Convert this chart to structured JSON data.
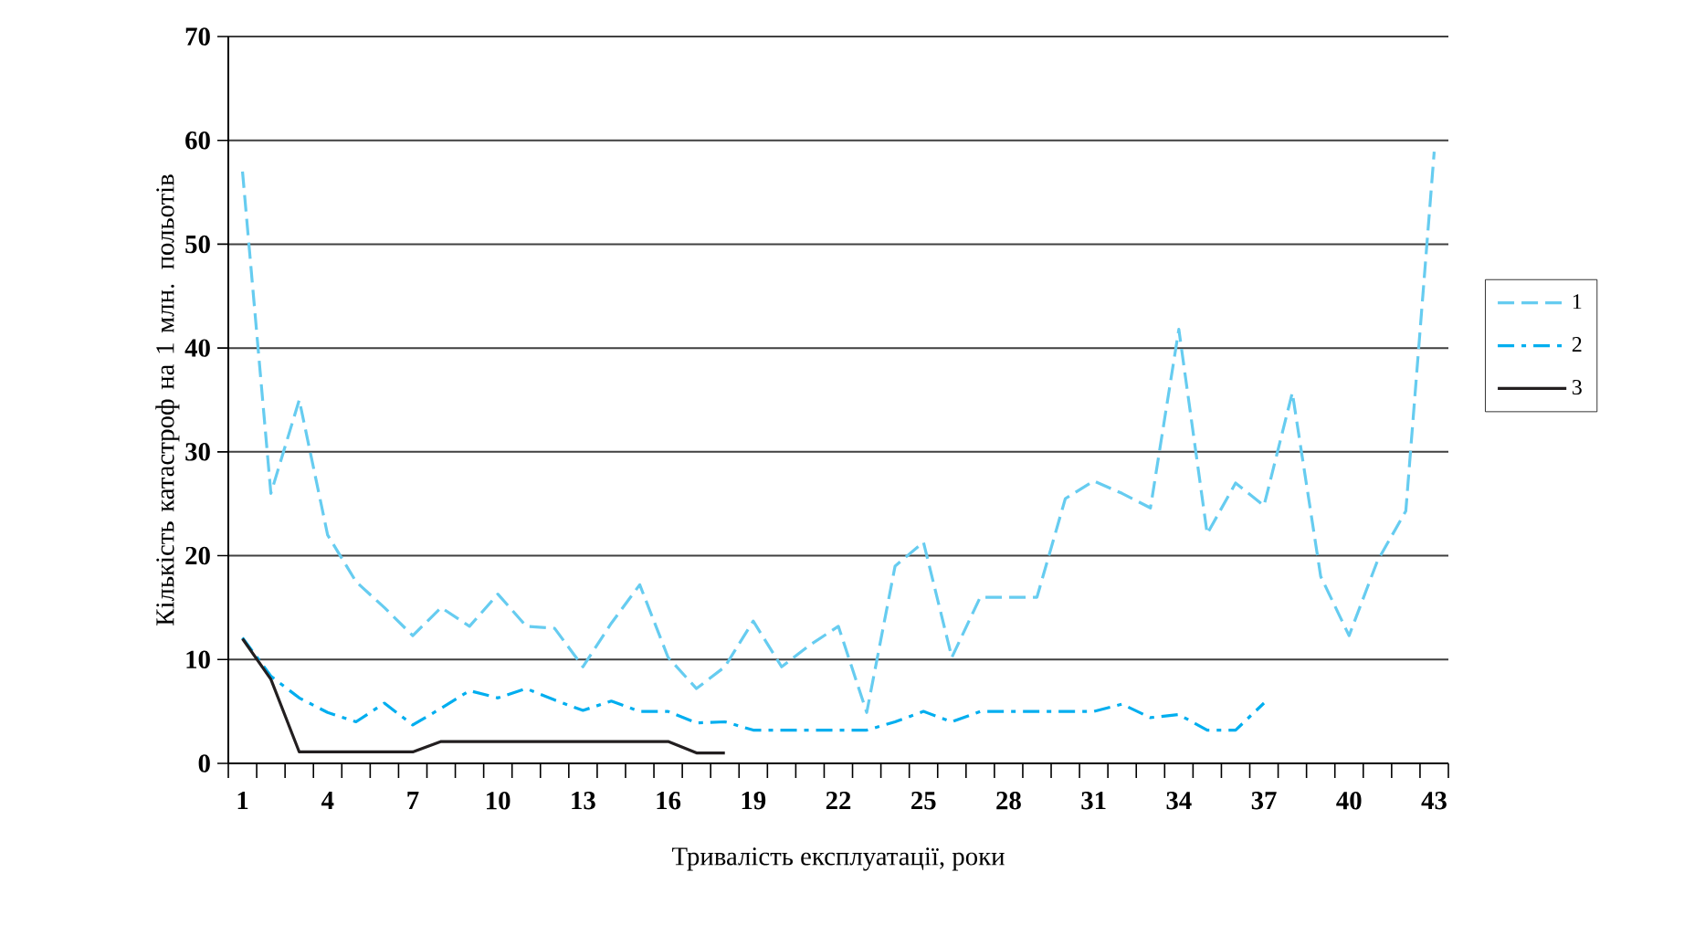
{
  "chart_data": {
    "type": "line",
    "xlabel": "Тривалість експлуатації, роки",
    "ylabel": "Кількість катастроф на 1 млн. польотів",
    "categories": [
      "1",
      null,
      null,
      "4",
      null,
      null,
      "7",
      null,
      null,
      "10",
      null,
      null,
      "13",
      null,
      null,
      "16",
      null,
      null,
      "19",
      null,
      null,
      "22",
      null,
      null,
      "25",
      null,
      null,
      "28",
      null,
      null,
      "31",
      null,
      null,
      "34",
      null,
      null,
      "37",
      null,
      null,
      "40",
      null,
      null,
      "43"
    ],
    "ylim": [
      0,
      70
    ],
    "yticks": [
      0,
      10,
      20,
      30,
      40,
      50,
      60,
      70
    ],
    "grid": "y",
    "legend": "right",
    "marker": "none",
    "series": [
      {
        "name": "1",
        "color": "#66ccf0",
        "line_style": "dashed",
        "values": [
          57,
          26,
          35,
          22,
          17.5,
          15,
          12.3,
          15,
          13.2,
          16.3,
          13.2,
          13,
          9.3,
          13.5,
          17.2,
          10.2,
          7.2,
          9.3,
          13.7,
          9.3,
          11.4,
          13.2,
          4.9,
          19,
          21.3,
          10.2,
          16,
          16,
          16,
          25.5,
          27.2,
          26,
          24.6,
          41.8,
          22.1,
          27,
          24.8,
          35.7,
          18,
          12.3,
          19.5,
          24.3,
          58.9
        ]
      },
      {
        "name": "2",
        "color": "#00aeef",
        "line_style": "dashdot",
        "values": [
          12.1,
          8.4,
          6.3,
          4.9,
          4,
          5.8,
          3.7,
          5.3,
          7,
          6.3,
          7.2,
          6.1,
          5.1,
          6,
          5,
          5,
          3.9,
          4,
          3.2,
          3.2,
          3.2,
          3.2,
          3.2,
          4,
          5,
          4,
          5,
          5,
          5,
          5,
          5,
          5.7,
          4.4,
          4.7,
          3.2,
          3.2,
          5.8,
          null,
          null,
          null,
          null,
          null,
          null
        ]
      },
      {
        "name": "3",
        "color": "#231f20",
        "line_style": "solid",
        "values": [
          12,
          8.1,
          1.1,
          1.1,
          1.1,
          1.1,
          1.1,
          2.1,
          2.1,
          2.1,
          2.1,
          2.1,
          2.1,
          2.1,
          2.1,
          2.1,
          1,
          1,
          null,
          null,
          null,
          null,
          null,
          null,
          null,
          null,
          null,
          null,
          null,
          null,
          null,
          null,
          null,
          null,
          null,
          null,
          null,
          null,
          null,
          null,
          null,
          null,
          null
        ]
      }
    ]
  }
}
